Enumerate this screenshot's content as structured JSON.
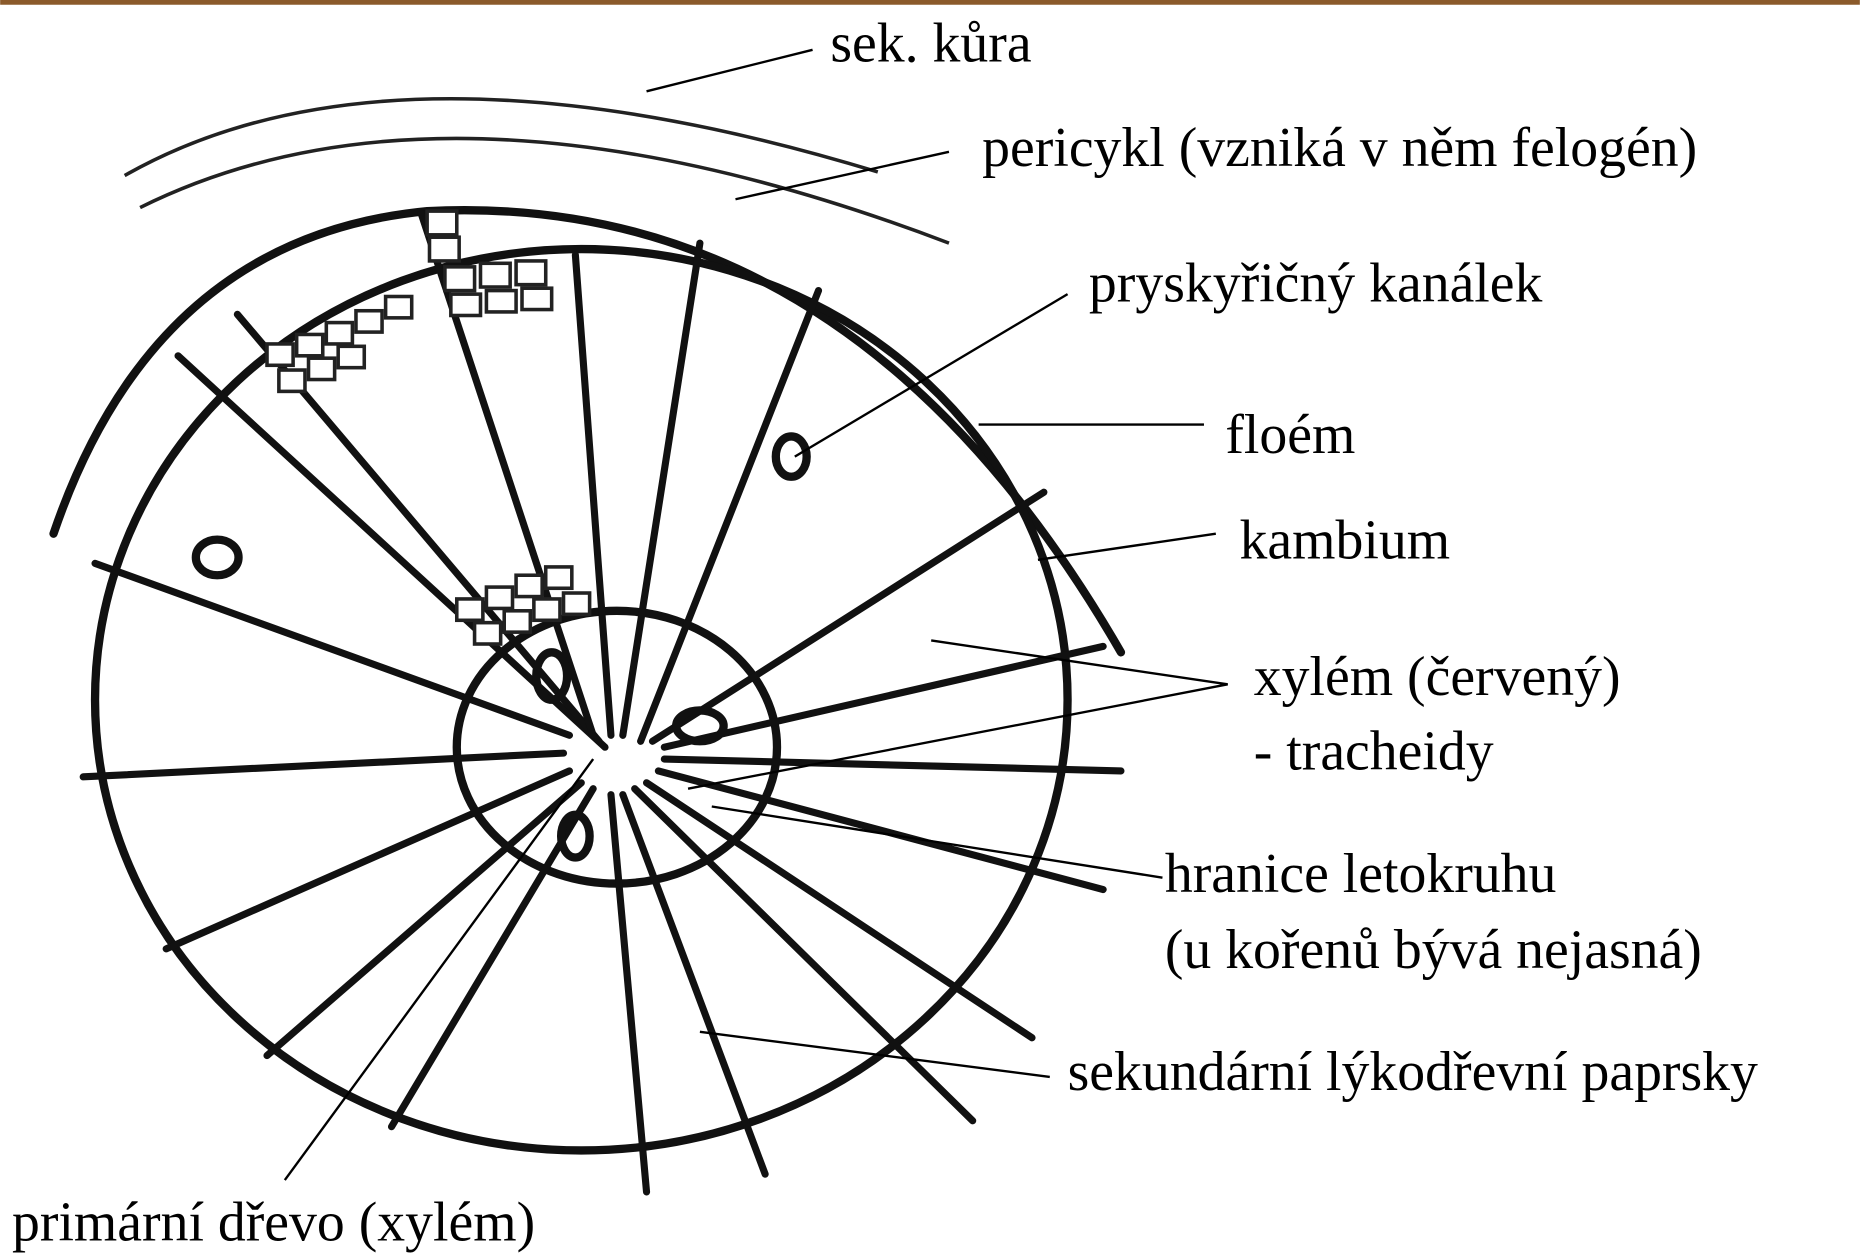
{
  "labels": {
    "secondary_cortex": "sek. kůra",
    "pericycle": "pericykl (vzniká v něm felogén)",
    "resin_canal": "pryskyřičný kanálek",
    "phloem": "floém",
    "cambium": "kambium",
    "xylem": "xylém (červený)",
    "xylem_note": "- tracheidy",
    "ring_boundary": "hranice letokruhu",
    "ring_boundary_note": "(u kořenů bývá nejasná)",
    "rays": "sekundární lýkodřevní paprsky",
    "primary_wood": "primární dřevo (xylém)"
  }
}
